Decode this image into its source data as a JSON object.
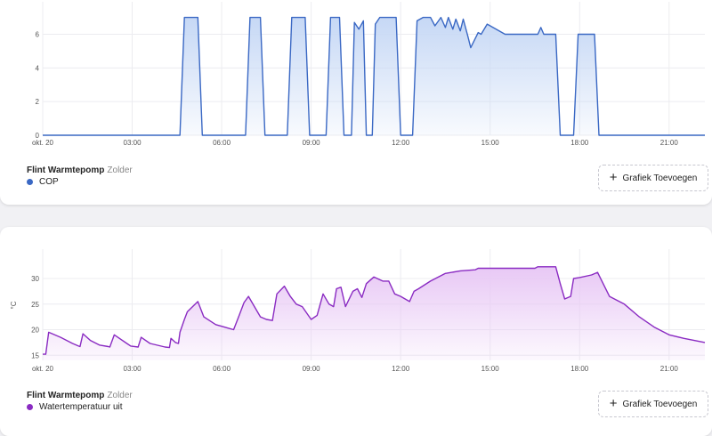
{
  "cards": [
    {
      "device_name": "Flint Warmtepomp",
      "device_room": "Zolder",
      "legend_label": "COP",
      "add_button_label": "Grafiek Toevoegen",
      "color": "#3a68c4",
      "fill_color": "#c6d8f5"
    },
    {
      "device_name": "Flint Warmtepomp",
      "device_room": "Zolder",
      "legend_label": "Watertemperatuur uit",
      "add_button_label": "Grafiek Toevoegen",
      "color": "#8a2bc2",
      "fill_color": "#e8c8f5"
    }
  ],
  "chart_data": [
    {
      "type": "area",
      "x_tick_labels": [
        "okt. 20",
        "03:00",
        "06:00",
        "09:00",
        "12:00",
        "15:00",
        "18:00",
        "21:00"
      ],
      "x_tick_hours": [
        0,
        3,
        6,
        9,
        12,
        15,
        18,
        21
      ],
      "xlim": [
        0,
        22.2
      ],
      "ylim": [
        0,
        7.4
      ],
      "y_ticks": [
        0,
        2,
        4,
        6
      ],
      "ylabel": "",
      "series": [
        {
          "x": [
            0,
            4.6,
            4.75,
            5.2,
            5.35,
            6.8,
            6.95,
            7.3,
            7.45,
            8.2,
            8.35,
            8.8,
            8.95,
            9.5,
            9.65,
            9.95,
            10.1,
            10.35,
            10.45,
            10.6,
            10.75,
            10.85,
            11.05,
            11.15,
            11.3,
            11.85,
            12.0,
            12.4,
            12.55,
            12.75,
            13.0,
            13.15,
            13.35,
            13.5,
            13.6,
            13.75,
            13.85,
            14.0,
            14.1,
            14.25,
            14.35,
            14.6,
            14.7,
            14.9,
            15.5,
            16.0,
            16.6,
            16.7,
            16.8,
            17.2,
            17.35,
            17.8,
            17.95,
            18.5,
            18.65,
            22.2
          ],
          "y": [
            0,
            0,
            7,
            7,
            0,
            0,
            7,
            7,
            0,
            0,
            7,
            7,
            0,
            0,
            7,
            7,
            0,
            0,
            6.7,
            6.3,
            6.8,
            0,
            0,
            6.6,
            7,
            7,
            0,
            0,
            6.8,
            7,
            7,
            6.5,
            7,
            6.4,
            7,
            6.3,
            6.9,
            6.2,
            6.9,
            5.9,
            5.2,
            6.1,
            6.0,
            6.6,
            6.0,
            6.0,
            6.0,
            6.4,
            6.0,
            6.0,
            0,
            0,
            6.0,
            6.0,
            0,
            0
          ]
        }
      ]
    },
    {
      "type": "area",
      "x_tick_labels": [
        "okt. 20",
        "03:00",
        "06:00",
        "09:00",
        "12:00",
        "15:00",
        "18:00",
        "21:00"
      ],
      "x_tick_hours": [
        0,
        3,
        6,
        9,
        12,
        15,
        18,
        21
      ],
      "xlim": [
        0,
        22.2
      ],
      "ylim": [
        14,
        34
      ],
      "y_ticks": [
        15,
        20,
        25,
        30
      ],
      "ylabel": "°C",
      "series": [
        {
          "x": [
            0,
            0.1,
            0.2,
            0.6,
            1.0,
            1.2,
            1.25,
            1.35,
            1.6,
            1.9,
            2.2,
            2.25,
            2.4,
            2.8,
            2.95,
            3.2,
            3.3,
            3.6,
            4.1,
            4.25,
            4.3,
            4.45,
            4.55,
            4.6,
            4.75,
            4.85,
            5.2,
            5.4,
            5.8,
            6.4,
            6.6,
            6.75,
            6.9,
            7.1,
            7.3,
            7.5,
            7.7,
            7.85,
            8.1,
            8.3,
            8.5,
            8.7,
            9.0,
            9.2,
            9.4,
            9.6,
            9.75,
            9.85,
            10.0,
            10.15,
            10.4,
            10.55,
            10.7,
            10.85,
            11.1,
            11.4,
            11.6,
            11.8,
            12.0,
            12.3,
            12.45,
            12.6,
            13.0,
            13.5,
            14.0,
            14.5,
            14.6,
            15.0,
            15.5,
            16.0,
            16.5,
            16.6,
            17.2,
            17.35,
            17.5,
            17.7,
            17.8,
            18.0,
            18.4,
            18.6,
            19.0,
            19.5,
            20.0,
            20.5,
            21.0,
            21.5,
            22.2
          ],
          "y": [
            15.2,
            15.2,
            19.5,
            18.5,
            17.3,
            16.8,
            16.7,
            19.2,
            17.9,
            17.0,
            16.7,
            16.6,
            19.0,
            17.4,
            16.8,
            16.6,
            18.5,
            17.3,
            16.6,
            16.5,
            18.3,
            17.5,
            17.3,
            19.5,
            22.0,
            23.5,
            25.5,
            22.5,
            21.0,
            20.0,
            23.0,
            25.3,
            26.5,
            24.5,
            22.5,
            22.0,
            21.8,
            27.0,
            28.5,
            26.5,
            25.0,
            24.5,
            22.0,
            22.8,
            27.0,
            25.0,
            24.5,
            28.0,
            28.3,
            24.5,
            27.5,
            28.0,
            26.3,
            29.0,
            30.3,
            29.5,
            29.5,
            27.0,
            26.5,
            25.5,
            27.5,
            28.0,
            29.5,
            31.0,
            31.5,
            31.7,
            32.0,
            32.0,
            32.0,
            32.0,
            32.0,
            32.3,
            32.3,
            29.0,
            26.0,
            26.5,
            30.0,
            30.2,
            30.7,
            31.2,
            26.5,
            25.0,
            22.5,
            20.5,
            19.0,
            18.3,
            17.5
          ]
        }
      ]
    }
  ]
}
